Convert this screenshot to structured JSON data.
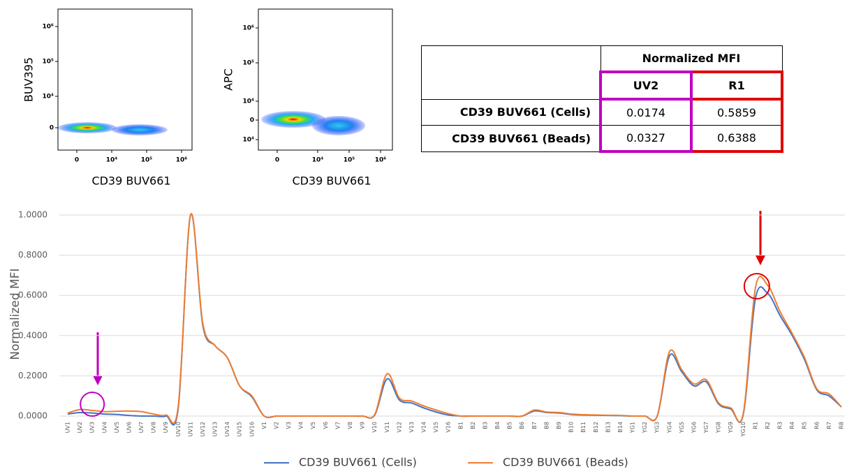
{
  "plots": [
    {
      "y_label": "BUV395",
      "x_label": "CD39 BUV661",
      "y_tick_labels": [
        "10⁶",
        "10⁵",
        "10⁴",
        "0"
      ],
      "x_tick_labels": [
        "0",
        "10⁴",
        "10⁵",
        "10⁶"
      ]
    },
    {
      "y_label": "APC",
      "x_label": "CD39 BUV661",
      "y_tick_labels": [
        "10⁶",
        "10⁵",
        "10⁴",
        "0",
        "10⁴"
      ],
      "x_tick_labels": [
        "0",
        "10⁴",
        "10⁵",
        "10⁶"
      ]
    }
  ],
  "table": {
    "group_header": "Normalized MFI",
    "columns": [
      "UV2",
      "R1"
    ],
    "rows": [
      [
        "CD39 BUV661 (Cells)",
        0.0174,
        0.5859
      ],
      [
        "CD39 BUV661 (Beads)",
        0.0327,
        0.6388
      ]
    ]
  },
  "chart_data": {
    "type": "line",
    "y_label": "Normalized MFI",
    "categories": [
      "UV1",
      "UV2",
      "UV3",
      "UV4",
      "UV5",
      "UV6",
      "UV7",
      "UV8",
      "UV9",
      "UV10",
      "UV11",
      "UV12",
      "UV13",
      "UV14",
      "UV15",
      "UV16",
      "V1",
      "V2",
      "V3",
      "V4",
      "V5",
      "V6",
      "V7",
      "V8",
      "V9",
      "V10",
      "V11",
      "V12",
      "V13",
      "V14",
      "V15",
      "V16",
      "B1",
      "B2",
      "B3",
      "B4",
      "B5",
      "B6",
      "B7",
      "B8",
      "B9",
      "B10",
      "B11",
      "B12",
      "B13",
      "B14",
      "YG1",
      "YG2",
      "YG3",
      "YG4",
      "YG5",
      "YG6",
      "YG7",
      "YG8",
      "YG9",
      "YG10",
      "R1",
      "R2",
      "R3",
      "R4",
      "R5",
      "R6",
      "R7",
      "R8"
    ],
    "series": [
      {
        "name": "CD39 BUV661 (Cells)",
        "color": "#4472c4",
        "values": [
          0.01,
          0.0174,
          0.015,
          0.01,
          0.008,
          0.003,
          0,
          0,
          0,
          0.04,
          1.0,
          0.45,
          0.35,
          0.29,
          0.15,
          0.095,
          0,
          0,
          0,
          0,
          0,
          0,
          0,
          0,
          0,
          0.005,
          0.185,
          0.08,
          0.065,
          0.04,
          0.02,
          0.005,
          0,
          0,
          0,
          0,
          0,
          0,
          0.025,
          0.018,
          0.015,
          0.008,
          0.005,
          0.004,
          0.003,
          0.002,
          0,
          0,
          0,
          0.3,
          0.22,
          0.15,
          0.17,
          0.06,
          0.035,
          0.005,
          0.5859,
          0.61,
          0.5,
          0.4,
          0.28,
          0.13,
          0.1,
          0.045
        ]
      },
      {
        "name": "CD39 BUV661 (Beads)",
        "color": "#ed7d31",
        "values": [
          0.015,
          0.0327,
          0.028,
          0.022,
          0.024,
          0.025,
          0.022,
          0.01,
          0.005,
          0.05,
          1.0,
          0.46,
          0.35,
          0.29,
          0.15,
          0.1,
          0,
          0,
          0,
          0,
          0,
          0,
          0,
          0,
          0,
          0.008,
          0.21,
          0.09,
          0.075,
          0.05,
          0.03,
          0.012,
          0,
          0,
          0,
          0,
          0,
          0,
          0.03,
          0.02,
          0.018,
          0.01,
          0.007,
          0.005,
          0.004,
          0.003,
          0,
          0,
          0,
          0.32,
          0.23,
          0.16,
          0.18,
          0.065,
          0.04,
          0.01,
          0.6388,
          0.65,
          0.52,
          0.41,
          0.29,
          0.135,
          0.11,
          0.045
        ]
      }
    ],
    "ylim": [
      0,
      1.0
    ],
    "yticks": [
      {
        "value": 0,
        "label": "0.0000"
      },
      {
        "value": 0.2,
        "label": "0.2000"
      },
      {
        "value": 0.4,
        "label": "0.4000"
      },
      {
        "value": 0.6,
        "label": "0.6000"
      },
      {
        "value": 0.8,
        "label": "0.8000"
      },
      {
        "value": 1.0,
        "label": "1.0000"
      }
    ],
    "grid": true
  }
}
